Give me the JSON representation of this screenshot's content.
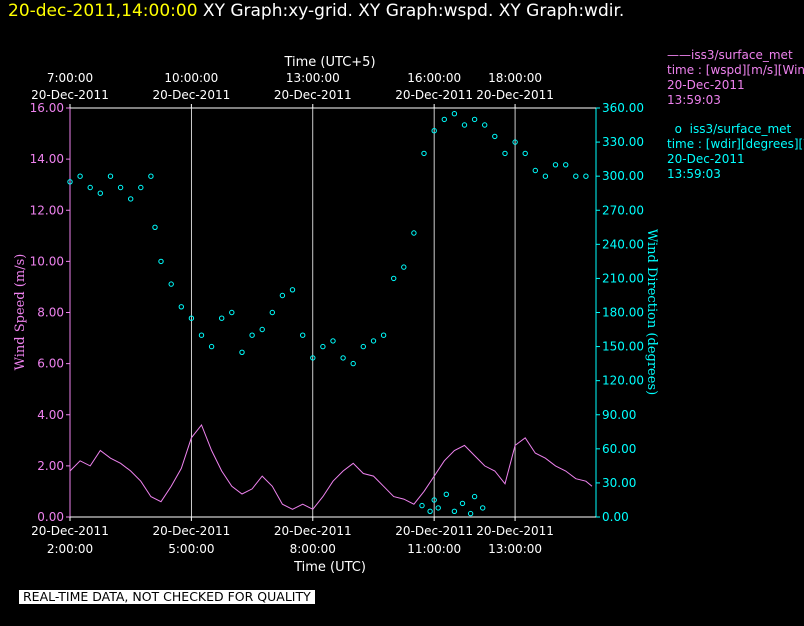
{
  "header": {
    "timestamp": "20-dec-2011,14:00:00",
    "titles": "XY Graph:xy-grid.  XY Graph:wspd.  XY Graph:wdir."
  },
  "legend": {
    "wspd": {
      "name": "iss3/surface_met",
      "line1": "time : [wspd][m/s][Wind",
      "line2": "20-Dec-2011",
      "line3": "13:59:03"
    },
    "wdir": {
      "name": "iss3/surface_met",
      "line1": "time : [wdir][degrees][Wind",
      "line2": "20-Dec-2011",
      "line3": "13:59:03"
    }
  },
  "notice": "REAL-TIME DATA, NOT CHECKED FOR QUALITY",
  "colors": {
    "wspd": "#ee82ee",
    "wdir": "#00ffff",
    "timestamp": "#ffff00",
    "grid": "#ffffff"
  },
  "chart_data": {
    "type": "line",
    "grid": "vertical lines at 5:00, 8:00, 11:00, 13:00 UTC",
    "x_bottom": {
      "label": "Time (UTC)",
      "range_hours_utc": [
        2.0,
        15.0
      ],
      "ticks": [
        {
          "h": 2.0,
          "date": "20-Dec-2011",
          "time": "2:00:00"
        },
        {
          "h": 5.0,
          "date": "20-Dec-2011",
          "time": "5:00:00"
        },
        {
          "h": 8.0,
          "date": "20-Dec-2011",
          "time": "8:00:00"
        },
        {
          "h": 11.0,
          "date": "20-Dec-2011",
          "time": "11:00:00"
        },
        {
          "h": 13.0,
          "date": "20-Dec-2011",
          "time": "13:00:00"
        }
      ]
    },
    "x_top": {
      "label": "Time (UTC+5)",
      "ticks": [
        {
          "h": 2.0,
          "time": "7:00:00",
          "date": "20-Dec-2011"
        },
        {
          "h": 5.0,
          "time": "10:00:00",
          "date": "20-Dec-2011"
        },
        {
          "h": 8.0,
          "time": "13:00:00",
          "date": "20-Dec-2011"
        },
        {
          "h": 11.0,
          "time": "16:00:00",
          "date": "20-Dec-2011"
        },
        {
          "h": 13.0,
          "time": "18:00:00",
          "date": "20-Dec-2011"
        }
      ]
    },
    "y_left": {
      "label": "Wind Speed (m/s)",
      "range": [
        0,
        16
      ],
      "ticks": [
        "0.00",
        "2.00",
        "4.00",
        "6.00",
        "8.00",
        "10.00",
        "12.00",
        "14.00",
        "16.00"
      ]
    },
    "y_right": {
      "label": "Wind Direction (degrees)",
      "range": [
        0,
        360
      ],
      "ticks": [
        "0.00",
        "30.00",
        "60.00",
        "90.00",
        "120.00",
        "150.00",
        "180.00",
        "210.00",
        "240.00",
        "270.00",
        "300.00",
        "330.00",
        "360.00"
      ]
    },
    "series": [
      {
        "name": "iss3/surface_met wspd",
        "style": "line",
        "axis": "left",
        "x_hours_utc": [
          2.0,
          2.25,
          2.5,
          2.75,
          3.0,
          3.25,
          3.5,
          3.75,
          4.0,
          4.25,
          4.5,
          4.75,
          5.0,
          5.25,
          5.5,
          5.75,
          6.0,
          6.25,
          6.5,
          6.75,
          7.0,
          7.25,
          7.5,
          7.75,
          8.0,
          8.25,
          8.5,
          8.75,
          9.0,
          9.25,
          9.5,
          9.75,
          10.0,
          10.25,
          10.5,
          10.75,
          11.0,
          11.25,
          11.5,
          11.75,
          12.0,
          12.25,
          12.5,
          12.75,
          13.0,
          13.25,
          13.5,
          13.75,
          14.0,
          14.25,
          14.5,
          14.75,
          14.9
        ],
        "values": [
          1.8,
          2.2,
          2.0,
          2.6,
          2.3,
          2.1,
          1.8,
          1.4,
          0.8,
          0.6,
          1.2,
          1.9,
          3.1,
          3.6,
          2.6,
          1.8,
          1.2,
          0.9,
          1.1,
          1.6,
          1.2,
          0.5,
          0.3,
          0.5,
          0.3,
          0.8,
          1.4,
          1.8,
          2.1,
          1.7,
          1.6,
          1.2,
          0.8,
          0.7,
          0.5,
          1.0,
          1.6,
          2.2,
          2.6,
          2.8,
          2.4,
          2.0,
          1.8,
          1.3,
          2.8,
          3.1,
          2.5,
          2.3,
          2.0,
          1.8,
          1.5,
          1.4,
          1.2
        ]
      },
      {
        "name": "iss3/surface_met wdir",
        "style": "circle-markers",
        "axis": "right",
        "x_hours_utc": [
          2.0,
          2.25,
          2.5,
          2.75,
          3.0,
          3.25,
          3.5,
          3.75,
          4.0,
          4.1,
          4.25,
          4.5,
          4.75,
          5.0,
          5.25,
          5.5,
          5.75,
          6.0,
          6.25,
          6.5,
          6.75,
          7.0,
          7.25,
          7.5,
          7.75,
          8.0,
          8.25,
          8.5,
          8.75,
          9.0,
          9.25,
          9.5,
          9.75,
          10.0,
          10.25,
          10.5,
          10.75,
          11.0,
          11.25,
          11.5,
          11.75,
          12.0,
          12.25,
          12.5,
          12.75,
          13.0,
          13.25,
          13.5,
          13.75,
          14.0,
          14.25,
          14.5,
          14.75
        ],
        "values": [
          295,
          300,
          290,
          285,
          300,
          290,
          280,
          290,
          300,
          255,
          225,
          205,
          185,
          175,
          160,
          150,
          175,
          180,
          145,
          160,
          165,
          180,
          195,
          200,
          160,
          140,
          150,
          155,
          140,
          135,
          150,
          155,
          160,
          210,
          220,
          250,
          320,
          340,
          350,
          355,
          345,
          350,
          345,
          335,
          320,
          330,
          320,
          305,
          300,
          310,
          310,
          300,
          300
        ]
      },
      {
        "name": "iss3/surface_met wdir low cluster",
        "style": "circle-markers",
        "axis": "right",
        "x_hours_utc": [
          10.7,
          10.9,
          11.0,
          11.1,
          11.3,
          11.5,
          11.7,
          11.9,
          12.0,
          12.2
        ],
        "values": [
          10,
          5,
          15,
          8,
          20,
          5,
          12,
          3,
          18,
          8
        ]
      }
    ]
  }
}
